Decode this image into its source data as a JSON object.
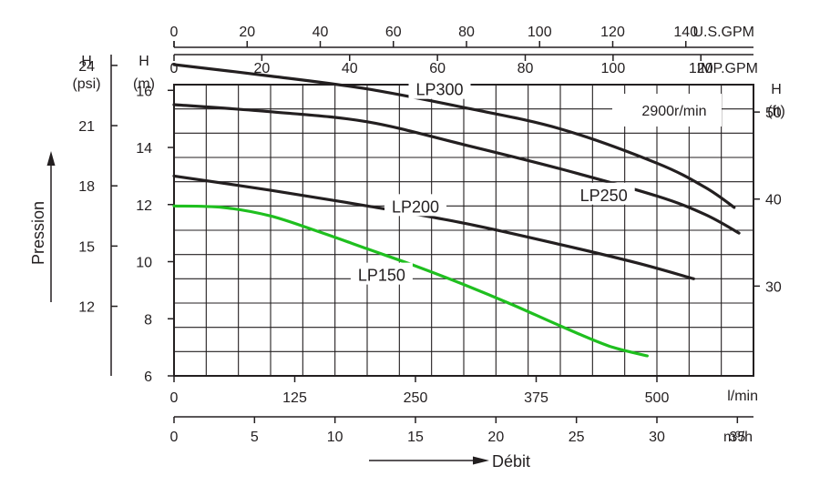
{
  "chart_data": {
    "type": "line",
    "title": "",
    "speed_label": "2900r/min",
    "x": {
      "unit_label": "l/min",
      "tick_labels": [
        "0",
        "125",
        "250",
        "375",
        "500"
      ],
      "ticks": [
        0,
        125,
        250,
        375,
        500
      ],
      "range": [
        0,
        600
      ]
    },
    "y": {
      "label_h": "H",
      "label_unit": "(m)",
      "tick_labels": [
        "6",
        "8",
        "10",
        "12",
        "14",
        "16"
      ],
      "ticks": [
        6,
        8,
        10,
        12,
        14,
        16
      ],
      "range": [
        6,
        16.2
      ]
    },
    "secondary_axes": {
      "top_usgpm": {
        "unit_label": "U.S.GPM",
        "tick_labels": [
          "0",
          "20",
          "40",
          "60",
          "80",
          "100",
          "120",
          "140"
        ]
      },
      "top_impgpm": {
        "unit_label": "IMP.GPM",
        "tick_labels": [
          "0",
          "20",
          "40",
          "60",
          "80",
          "100",
          "120"
        ]
      },
      "bottom_m3h": {
        "unit_label": "m³/h",
        "tick_labels": [
          "0",
          "5",
          "10",
          "15",
          "20",
          "25",
          "30",
          "35"
        ]
      },
      "left_psi": {
        "label_h": "H",
        "label_unit": "(psi)",
        "tick_labels": [
          "12",
          "15",
          "18",
          "21",
          "24"
        ]
      },
      "right_ft": {
        "label_h": "H",
        "label_unit": "(ft)",
        "tick_labels": [
          "30",
          "40",
          "50"
        ]
      }
    },
    "pressure_label": "Pression",
    "flow_label": "Débit",
    "series": [
      {
        "name": "LP300",
        "color": "#231f20",
        "points": [
          [
            0,
            16.9
          ],
          [
            100,
            16.5
          ],
          [
            200,
            16.05
          ],
          [
            300,
            15.4
          ],
          [
            400,
            14.65
          ],
          [
            500,
            13.45
          ],
          [
            550,
            12.6
          ],
          [
            580,
            11.9
          ]
        ]
      },
      {
        "name": "LP250",
        "color": "#231f20",
        "points": [
          [
            0,
            15.5
          ],
          [
            100,
            15.25
          ],
          [
            200,
            14.9
          ],
          [
            300,
            14.1
          ],
          [
            400,
            13.25
          ],
          [
            500,
            12.3
          ],
          [
            550,
            11.65
          ],
          [
            585,
            11.0
          ]
        ]
      },
      {
        "name": "LP200",
        "color": "#231f20",
        "points": [
          [
            0,
            13.0
          ],
          [
            100,
            12.5
          ],
          [
            200,
            11.95
          ],
          [
            300,
            11.35
          ],
          [
            400,
            10.6
          ],
          [
            480,
            9.95
          ],
          [
            538,
            9.4
          ]
        ]
      },
      {
        "name": "LP150",
        "color": "#1fbf1f",
        "points": [
          [
            0,
            11.95
          ],
          [
            50,
            11.9
          ],
          [
            100,
            11.6
          ],
          [
            150,
            11.05
          ],
          [
            200,
            10.45
          ],
          [
            250,
            9.85
          ],
          [
            300,
            9.2
          ],
          [
            350,
            8.5
          ],
          [
            400,
            7.75
          ],
          [
            450,
            7.05
          ],
          [
            490,
            6.7
          ]
        ]
      }
    ]
  }
}
